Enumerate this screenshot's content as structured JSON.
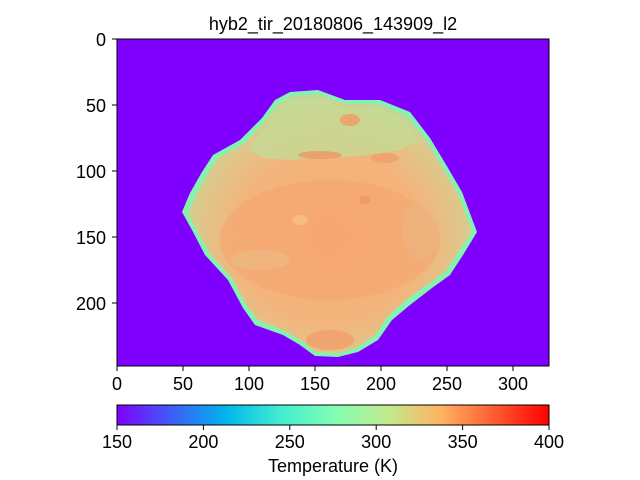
{
  "figure": {
    "title": "hyb2_tir_20180806_143909_l2",
    "background_color": "#8000ff"
  },
  "image_axes": {
    "x_ticks": [
      "0",
      "50",
      "100",
      "150",
      "200",
      "250",
      "300"
    ],
    "y_ticks": [
      "0",
      "50",
      "100",
      "150",
      "200"
    ],
    "x_range": [
      0,
      328
    ],
    "y_range": [
      0,
      248
    ]
  },
  "colorbar": {
    "label": "Temperature (K)",
    "ticks": [
      "150",
      "200",
      "250",
      "300",
      "350",
      "400"
    ],
    "range": [
      150,
      400
    ],
    "colormap": "rainbow",
    "colors": [
      "#8000ff",
      "#3f5cf8",
      "#00b4ec",
      "#40ecd3",
      "#80feb3",
      "#c0eb8d",
      "#ffb360",
      "#ff5a30",
      "#ff0000"
    ]
  },
  "object": {
    "name": "asteroid-thermal-image",
    "surface_color": "#f5b07a",
    "edge_color": "#86f2b0",
    "outline_color": "#bfe6a0"
  }
}
